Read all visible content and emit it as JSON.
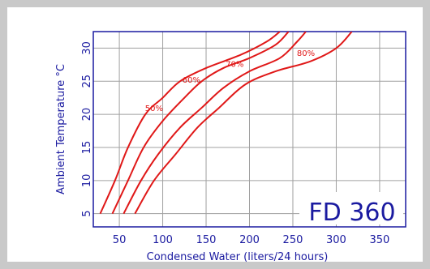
{
  "chart_data": {
    "type": "line",
    "model_label": "FD 360",
    "xlabel": "Condensed Water (liters/24 hours)",
    "ylabel": "Ambient Temperature °C",
    "xlim": [
      20,
      380
    ],
    "ylim": [
      3,
      32.5
    ],
    "x_ticks": [
      50,
      100,
      150,
      200,
      250,
      300,
      350
    ],
    "y_ticks": [
      5,
      10,
      15,
      20,
      25,
      30
    ],
    "grid": true,
    "colors": {
      "curve": "#e01818",
      "text": "#1a1aa0",
      "frame": "#1a1aa0",
      "grid": "#a0a0a0"
    },
    "series": [
      {
        "name": "50%",
        "label_at": [
          90,
          20.5
        ],
        "points": [
          [
            28,
            5
          ],
          [
            45,
            10
          ],
          [
            60,
            15
          ],
          [
            80,
            20
          ],
          [
            100,
            22.5
          ],
          [
            120,
            25
          ],
          [
            150,
            27
          ],
          [
            190,
            29
          ],
          [
            220,
            31
          ],
          [
            235,
            32.5
          ]
        ]
      },
      {
        "name": "60%",
        "label_at": [
          133,
          24.8
        ],
        "points": [
          [
            42,
            5
          ],
          [
            60,
            10
          ],
          [
            78,
            15
          ],
          [
            100,
            19
          ],
          [
            125,
            22.5
          ],
          [
            145,
            25
          ],
          [
            170,
            27
          ],
          [
            200,
            28.5
          ],
          [
            230,
            30.5
          ],
          [
            245,
            32.5
          ]
        ]
      },
      {
        "name": "70%",
        "label_at": [
          183,
          27.2
        ],
        "points": [
          [
            55,
            5
          ],
          [
            75,
            10
          ],
          [
            95,
            14
          ],
          [
            120,
            18
          ],
          [
            145,
            21
          ],
          [
            170,
            24
          ],
          [
            200,
            26.5
          ],
          [
            235,
            28.5
          ],
          [
            255,
            31
          ],
          [
            265,
            32.5
          ]
        ]
      },
      {
        "name": "80%",
        "label_at": [
          265,
          28.8
        ],
        "points": [
          [
            68,
            5
          ],
          [
            90,
            10
          ],
          [
            115,
            14
          ],
          [
            140,
            18
          ],
          [
            165,
            21
          ],
          [
            195,
            24.5
          ],
          [
            230,
            26.5
          ],
          [
            270,
            28
          ],
          [
            300,
            30
          ],
          [
            318,
            32.5
          ]
        ]
      }
    ]
  }
}
